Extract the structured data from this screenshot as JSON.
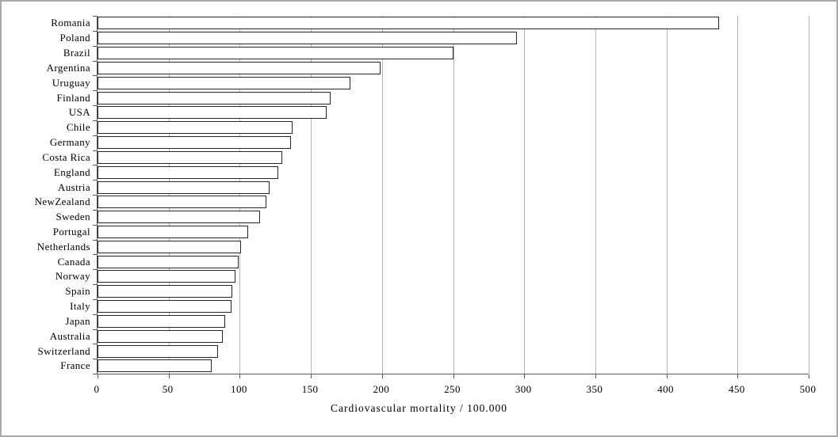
{
  "chart_data": {
    "type": "bar",
    "orientation": "horizontal",
    "title": "",
    "xlabel": "Cardiovascular mortality / 100.000",
    "ylabel": "",
    "xlim": [
      0,
      500
    ],
    "xticks": [
      0,
      50,
      100,
      150,
      200,
      250,
      300,
      350,
      400,
      450,
      500
    ],
    "grid": "vertical gridlines at every 50 units",
    "legend": "none",
    "categories": [
      "Romania",
      "Poland",
      "Brazil",
      "Argentina",
      "Uruguay",
      "Finland",
      "USA",
      "Chile",
      "Germany",
      "Costa Rica",
      "England",
      "Austria",
      "NewZealand",
      "Sweden",
      "Portugal",
      "Netherlands",
      "Canada",
      "Norway",
      "Spain",
      "Italy",
      "Japan",
      "Australia",
      "Switzerland",
      "France"
    ],
    "values": [
      437,
      295,
      250,
      199,
      178,
      164,
      161,
      137,
      136,
      130,
      127,
      121,
      119,
      114,
      106,
      101,
      99,
      97,
      95,
      94,
      90,
      88,
      85,
      80
    ]
  },
  "colors": {
    "bar_fill": "#ffffff",
    "bar_border": "#262626",
    "gridline": "#b3b3b3",
    "axis_line": "#595959",
    "text": "#000000",
    "frame_border": "#a9a9a9",
    "background": "#ffffff"
  }
}
